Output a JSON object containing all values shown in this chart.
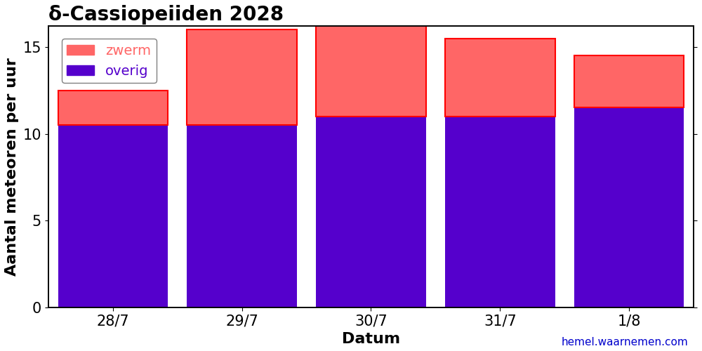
{
  "categories": [
    "28/7",
    "29/7",
    "30/7",
    "31/7",
    "1/8"
  ],
  "overig": [
    10.5,
    10.5,
    11.0,
    11.0,
    11.5
  ],
  "zwerm": [
    2.0,
    5.5,
    5.5,
    4.5,
    3.0
  ],
  "overig_color": "#5500cc",
  "zwerm_color": "#ff6666",
  "title": "δ-Cassiopeiiden 2028",
  "ylabel": "Aantal meteoren per uur",
  "xlabel": "Datum",
  "ylim": [
    0,
    16.2
  ],
  "yticks": [
    0,
    5,
    10,
    15
  ],
  "legend_zwerm": "zwerm",
  "legend_overig": "overig",
  "website": "hemel.waarnemen.com",
  "website_color": "#0000cc",
  "bar_width": 0.85,
  "background_color": "#ffffff",
  "title_fontsize": 20,
  "label_fontsize": 16,
  "tick_fontsize": 15,
  "legend_fontsize": 14
}
